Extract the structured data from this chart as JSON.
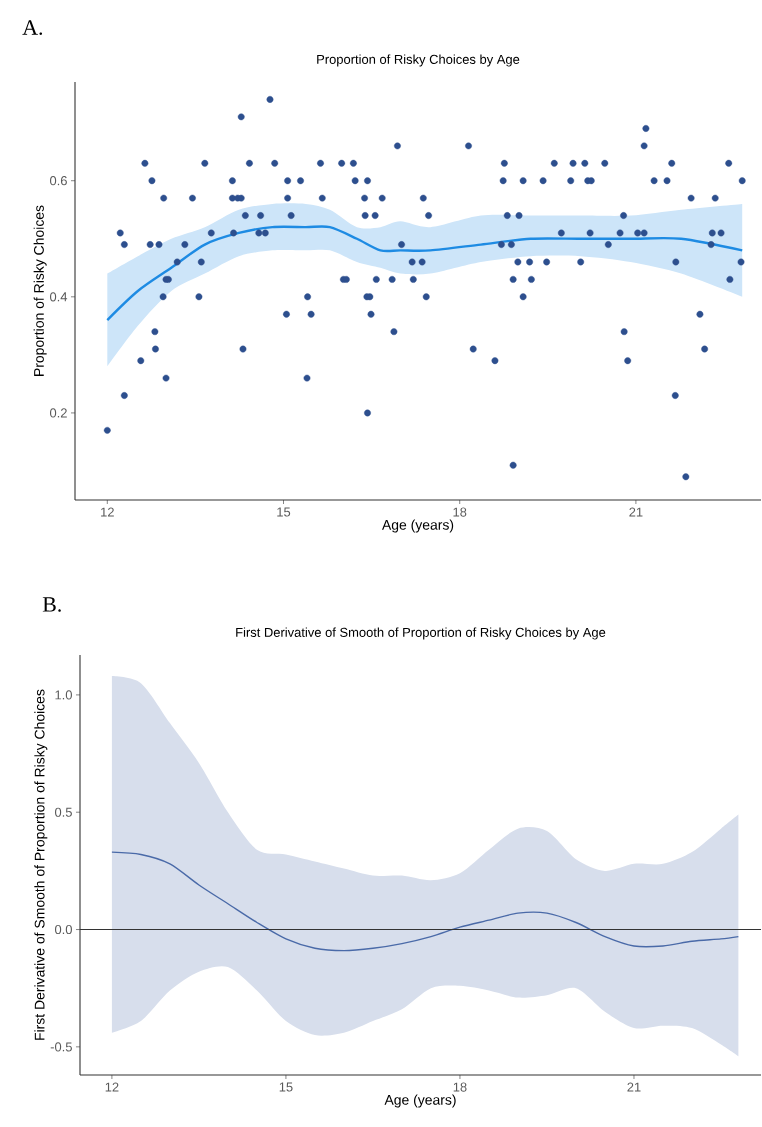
{
  "chart_data": [
    {
      "type": "scatter",
      "title": "Proportion of Risky Choices by Age",
      "xlabel": "Age (years)",
      "ylabel": "Proportion of Risky Choices",
      "annotations": [
        "A."
      ],
      "xlim": [
        11.45,
        23.13
      ],
      "ylim": [
        0.05,
        0.77
      ],
      "xticks": [
        12,
        15,
        18,
        21
      ],
      "yticks": [
        0.2,
        0.4,
        0.6
      ],
      "series": [
        {
          "type": "scatter",
          "color": "#2d4f8e",
          "marker": "circle",
          "x": [
            12.0,
            12.22,
            12.29,
            12.29,
            12.57,
            12.64,
            12.76,
            12.73,
            12.88,
            12.96,
            12.81,
            12.82,
            12.95,
            13.0,
            13.04,
            13.0,
            13.19,
            13.32,
            13.45,
            13.6,
            13.56,
            13.66,
            13.77,
            14.13,
            14.13,
            14.22,
            14.28,
            14.15,
            14.28,
            14.31,
            14.35,
            14.42,
            14.61,
            14.58,
            14.69,
            14.77,
            14.85,
            15.07,
            15.07,
            15.13,
            15.05,
            15.29,
            15.41,
            15.47,
            15.4,
            15.63,
            15.66,
            15.99,
            16.19,
            16.02,
            16.07,
            16.22,
            16.43,
            16.38,
            16.39,
            16.56,
            16.42,
            16.47,
            16.49,
            16.43,
            16.58,
            16.68,
            16.85,
            16.88,
            16.94,
            17.01,
            17.21,
            17.19,
            17.36,
            17.38,
            17.47,
            17.43,
            18.15,
            18.23,
            18.6,
            18.76,
            18.74,
            18.81,
            18.71,
            18.88,
            18.91,
            19.01,
            19.08,
            18.99,
            19.19,
            18.91,
            19.22,
            19.08,
            19.42,
            19.48,
            19.61,
            19.73,
            19.89,
            19.93,
            20.06,
            20.13,
            20.18,
            20.24,
            20.22,
            20.47,
            20.53,
            20.73,
            20.79,
            20.8,
            20.86,
            21.03,
            21.14,
            21.14,
            21.17,
            21.31,
            21.53,
            21.61,
            21.68,
            21.67,
            21.85,
            21.94,
            22.09,
            22.17,
            22.28,
            22.3,
            22.45,
            22.35,
            22.58,
            22.6,
            22.81,
            22.79
          ],
          "values": [
            0.17,
            0.51,
            0.49,
            0.23,
            0.29,
            0.63,
            0.6,
            0.49,
            0.49,
            0.57,
            0.34,
            0.31,
            0.4,
            0.43,
            0.43,
            0.26,
            0.46,
            0.49,
            0.57,
            0.46,
            0.4,
            0.63,
            0.51,
            0.6,
            0.57,
            0.57,
            0.57,
            0.51,
            0.71,
            0.31,
            0.54,
            0.63,
            0.54,
            0.51,
            0.51,
            0.74,
            0.63,
            0.6,
            0.57,
            0.54,
            0.37,
            0.6,
            0.4,
            0.37,
            0.26,
            0.63,
            0.57,
            0.63,
            0.63,
            0.43,
            0.43,
            0.6,
            0.6,
            0.57,
            0.54,
            0.54,
            0.4,
            0.4,
            0.37,
            0.2,
            0.43,
            0.57,
            0.43,
            0.34,
            0.66,
            0.49,
            0.43,
            0.46,
            0.46,
            0.57,
            0.54,
            0.4,
            0.66,
            0.31,
            0.29,
            0.63,
            0.6,
            0.54,
            0.49,
            0.49,
            0.11,
            0.54,
            0.6,
            0.46,
            0.46,
            0.43,
            0.43,
            0.4,
            0.6,
            0.46,
            0.63,
            0.51,
            0.6,
            0.63,
            0.46,
            0.63,
            0.6,
            0.6,
            0.51,
            0.63,
            0.49,
            0.51,
            0.54,
            0.34,
            0.29,
            0.51,
            0.51,
            0.66,
            0.69,
            0.6,
            0.6,
            0.63,
            0.46,
            0.23,
            0.09,
            0.57,
            0.37,
            0.31,
            0.49,
            0.51,
            0.51,
            0.57,
            0.63,
            0.43,
            0.6,
            0.46
          ]
        },
        {
          "type": "line",
          "color": "#1e8be3",
          "x": [
            12,
            12.52,
            13.09,
            13.66,
            14.24,
            14.81,
            15.38,
            15.79,
            16.25,
            16.65,
            16.99,
            17.5,
            18.36,
            19.21,
            20.06,
            20.91,
            21.77,
            22.81
          ],
          "values": [
            0.36,
            0.41,
            0.45,
            0.49,
            0.51,
            0.52,
            0.52,
            0.52,
            0.5,
            0.48,
            0.48,
            0.48,
            0.49,
            0.5,
            0.5,
            0.5,
            0.5,
            0.48
          ],
          "upper": [
            0.44,
            0.47,
            0.5,
            0.52,
            0.55,
            0.56,
            0.56,
            0.55,
            0.52,
            0.52,
            0.53,
            0.52,
            0.54,
            0.54,
            0.54,
            0.54,
            0.55,
            0.56
          ],
          "lower": [
            0.28,
            0.35,
            0.41,
            0.44,
            0.47,
            0.48,
            0.48,
            0.48,
            0.46,
            0.45,
            0.44,
            0.44,
            0.46,
            0.47,
            0.47,
            0.46,
            0.44,
            0.4
          ]
        }
      ]
    },
    {
      "type": "line",
      "title": "First Derivative of Smooth of Proportion of Risky Choices by Age",
      "xlabel": "Age (years)",
      "ylabel": "First Derivative of Smooth of Proportion of Risky Choices",
      "annotations": [
        "B."
      ],
      "xlim": [
        11.45,
        23.19
      ],
      "ylim": [
        -0.62,
        1.17
      ],
      "xticks": [
        12,
        15,
        18,
        21
      ],
      "yticks": [
        {
          "value": -0.5,
          "label": "-0.5"
        },
        {
          "value": 0,
          "label": "0.0"
        },
        {
          "value": 0.5,
          "label": "0.5"
        },
        {
          "value": 1,
          "label": "1.0"
        }
      ],
      "ref_lines": [
        {
          "axis": "y",
          "value": 0,
          "color": "#333333"
        }
      ],
      "series": [
        {
          "color": "#4a6aa8",
          "x": [
            12,
            12.5,
            13,
            13.5,
            14,
            14.5,
            15,
            15.5,
            16,
            16.5,
            17,
            17.5,
            18,
            18.5,
            19,
            19.5,
            20,
            20.5,
            21,
            21.5,
            22,
            22.5,
            22.8
          ],
          "values": [
            0.33,
            0.32,
            0.28,
            0.19,
            0.11,
            0.03,
            -0.04,
            -0.08,
            -0.09,
            -0.08,
            -0.06,
            -0.03,
            0.01,
            0.04,
            0.07,
            0.07,
            0.03,
            -0.03,
            -0.07,
            -0.07,
            -0.05,
            -0.04,
            -0.03
          ],
          "upper": [
            1.08,
            1.05,
            0.88,
            0.71,
            0.5,
            0.34,
            0.32,
            0.29,
            0.26,
            0.23,
            0.23,
            0.21,
            0.24,
            0.34,
            0.43,
            0.42,
            0.3,
            0.25,
            0.28,
            0.28,
            0.33,
            0.43,
            0.49
          ],
          "lower": [
            -0.44,
            -0.39,
            -0.26,
            -0.18,
            -0.16,
            -0.26,
            -0.39,
            -0.45,
            -0.44,
            -0.39,
            -0.34,
            -0.25,
            -0.24,
            -0.26,
            -0.29,
            -0.28,
            -0.25,
            -0.35,
            -0.42,
            -0.41,
            -0.42,
            -0.49,
            -0.54
          ]
        }
      ]
    }
  ]
}
